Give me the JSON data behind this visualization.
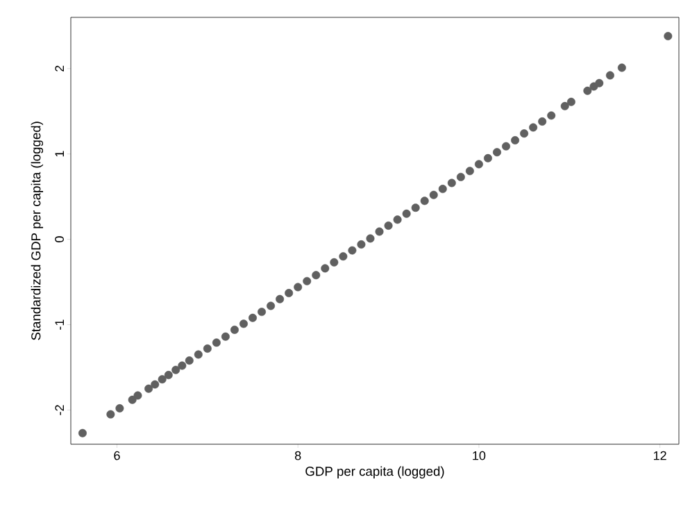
{
  "chart_data": {
    "type": "scatter",
    "xlabel": "GDP per capita (logged)",
    "ylabel": "Standardized GDP per capita (logged)",
    "marker": "circle",
    "grid": false,
    "xlim": [
      5.49,
      12.21
    ],
    "ylim": [
      -2.4,
      2.6
    ],
    "xticks": [
      6,
      8,
      10,
      12
    ],
    "yticks": [
      -2,
      -1,
      0,
      1,
      2
    ],
    "series": [
      {
        "color": "#606060",
        "x": [
          5.62,
          5.93,
          6.03,
          6.17,
          6.23,
          6.35,
          6.42,
          6.5,
          6.57,
          6.65,
          6.72,
          6.8,
          6.9,
          7.0,
          7.1,
          7.2,
          7.3,
          7.4,
          7.5,
          7.6,
          7.7,
          7.8,
          7.9,
          8.0,
          8.1,
          8.2,
          8.3,
          8.4,
          8.5,
          8.6,
          8.7,
          8.8,
          8.9,
          9.0,
          9.1,
          9.2,
          9.3,
          9.4,
          9.5,
          9.6,
          9.7,
          9.8,
          9.9,
          10.0,
          10.1,
          10.2,
          10.3,
          10.4,
          10.5,
          10.6,
          10.7,
          10.8,
          10.95,
          11.02,
          11.2,
          11.27,
          11.33,
          11.45,
          11.58,
          12.09
        ],
        "values": [
          -2.27,
          -2.05,
          -1.98,
          -1.88,
          -1.83,
          -1.75,
          -1.7,
          -1.64,
          -1.59,
          -1.53,
          -1.48,
          -1.42,
          -1.35,
          -1.28,
          -1.21,
          -1.14,
          -1.06,
          -0.99,
          -0.92,
          -0.85,
          -0.78,
          -0.7,
          -0.63,
          -0.56,
          -0.49,
          -0.42,
          -0.34,
          -0.27,
          -0.2,
          -0.13,
          -0.06,
          0.01,
          0.09,
          0.16,
          0.23,
          0.3,
          0.37,
          0.45,
          0.52,
          0.59,
          0.66,
          0.73,
          0.8,
          0.88,
          0.95,
          1.02,
          1.09,
          1.16,
          1.24,
          1.31,
          1.38,
          1.45,
          1.56,
          1.61,
          1.74,
          1.79,
          1.83,
          1.92,
          2.01,
          2.38
        ]
      }
    ]
  }
}
